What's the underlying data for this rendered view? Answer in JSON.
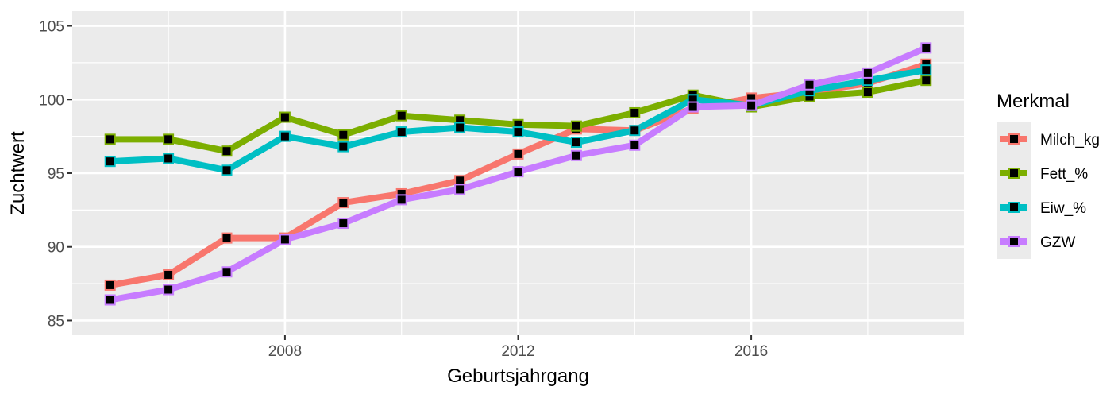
{
  "chart_data": {
    "type": "line",
    "title": "",
    "xlabel": "Geburtsjahrgang",
    "ylabel": "Zuchtwert",
    "x": [
      2005,
      2006,
      2007,
      2008,
      2009,
      2010,
      2011,
      2012,
      2013,
      2014,
      2015,
      2016,
      2017,
      2018,
      2019
    ],
    "xlim": [
      2004.35,
      2019.65
    ],
    "ylim": [
      84.0,
      106.0
    ],
    "xticks": [
      2008,
      2012,
      2016
    ],
    "xtick_labels": [
      "2008",
      "2012",
      "2016"
    ],
    "yticks": [
      85,
      90,
      95,
      100,
      105
    ],
    "ytick_labels": [
      "85",
      "90",
      "95",
      "100",
      "105"
    ],
    "grid": true,
    "legend": {
      "title": "Merkmal",
      "placement": "right"
    },
    "series": [
      {
        "name": "Milch_kg",
        "color": "#F8766D",
        "values": [
          87.4,
          88.1,
          90.6,
          90.6,
          93.0,
          93.6,
          94.5,
          96.3,
          98.0,
          97.9,
          99.4,
          100.1,
          100.5,
          101.1,
          102.4
        ]
      },
      {
        "name": "Fett_%",
        "color": "#7CAE00",
        "values": [
          97.3,
          97.3,
          96.5,
          98.8,
          97.6,
          98.9,
          98.6,
          98.3,
          98.2,
          99.1,
          100.3,
          99.5,
          100.2,
          100.5,
          101.3
        ]
      },
      {
        "name": "Eiw_%",
        "color": "#00BFC4",
        "values": [
          95.8,
          96.0,
          95.2,
          97.5,
          96.8,
          97.8,
          98.1,
          97.8,
          97.1,
          97.9,
          100.0,
          99.6,
          100.6,
          101.3,
          102.0
        ]
      },
      {
        "name": "GZW",
        "color": "#C77CFF",
        "values": [
          86.4,
          87.1,
          88.3,
          90.5,
          91.6,
          93.2,
          93.9,
          95.1,
          96.2,
          96.9,
          99.5,
          99.6,
          101.0,
          101.8,
          103.5
        ]
      }
    ]
  }
}
